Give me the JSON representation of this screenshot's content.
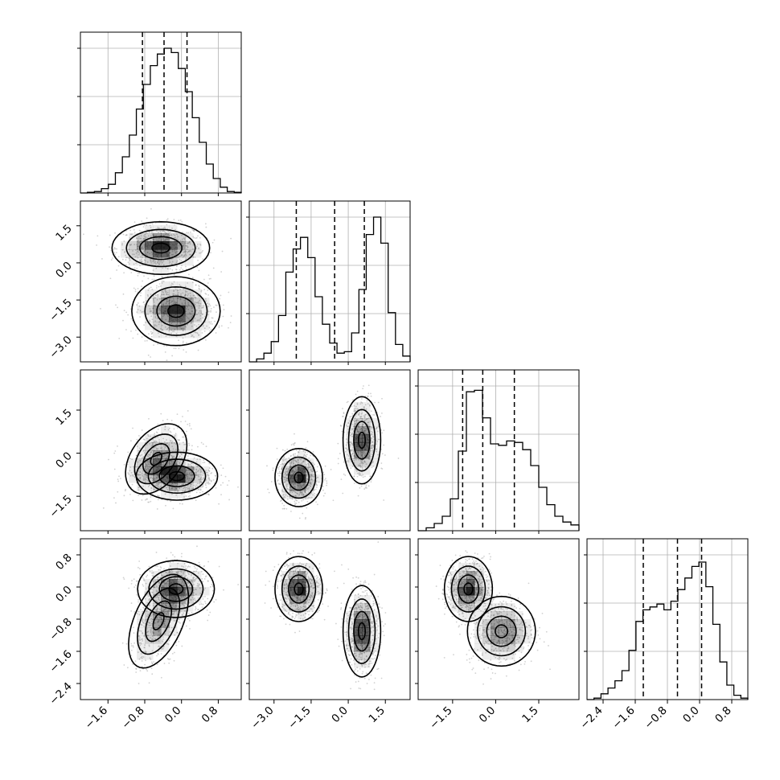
{
  "chart_data": {
    "type": "corner",
    "title": "",
    "dimensions": 4,
    "ranges": [
      [
        -2.2,
        1.3
      ],
      [
        -4.0,
        2.5
      ],
      [
        -2.7,
        2.9
      ],
      [
        -2.8,
        1.2
      ]
    ],
    "ticks": [
      [
        -1.6,
        -0.8,
        0.0,
        0.8
      ],
      [
        -3.0,
        -1.5,
        0.0,
        1.5
      ],
      [
        -1.5,
        0.0,
        1.5
      ],
      [
        -2.4,
        -1.6,
        -0.8,
        0.0,
        0.8
      ]
    ],
    "tick_labels": [
      [
        "−1.6",
        "−0.8",
        "0.0",
        "0.8"
      ],
      [
        "−3.0",
        "−1.5",
        "0.0",
        "1.5"
      ],
      [
        "−1.5",
        "0.0",
        "1.5"
      ],
      [
        "−2.4",
        "−1.6",
        "−0.8",
        "0.0",
        "0.8"
      ]
    ],
    "quantiles": [
      [
        -0.85,
        -0.38,
        0.12
      ],
      [
        -2.1,
        -0.55,
        0.65
      ],
      [
        -1.15,
        -0.45,
        0.65
      ],
      [
        -1.4,
        -0.55,
        0.05
      ]
    ],
    "histograms": [
      [
        0.0,
        0.005,
        0.01,
        0.03,
        0.06,
        0.14,
        0.25,
        0.4,
        0.58,
        0.75,
        0.88,
        0.96,
        1.0,
        0.97,
        0.86,
        0.7,
        0.52,
        0.35,
        0.2,
        0.1,
        0.04,
        0.01,
        0.005
      ],
      [
        0.0,
        0.02,
        0.06,
        0.14,
        0.32,
        0.62,
        0.78,
        0.86,
        0.72,
        0.45,
        0.26,
        0.13,
        0.06,
        0.07,
        0.2,
        0.5,
        0.88,
        1.0,
        0.82,
        0.34,
        0.12,
        0.04
      ],
      [
        0.0,
        0.02,
        0.05,
        0.1,
        0.22,
        0.55,
        0.96,
        0.97,
        0.78,
        0.6,
        0.59,
        0.62,
        0.61,
        0.56,
        0.45,
        0.3,
        0.18,
        0.1,
        0.06,
        0.04
      ],
      [
        0.0,
        0.01,
        0.04,
        0.08,
        0.13,
        0.2,
        0.34,
        0.54,
        0.62,
        0.64,
        0.66,
        0.62,
        0.68,
        0.76,
        0.84,
        0.92,
        0.95,
        0.78,
        0.52,
        0.26,
        0.1,
        0.03,
        0.01
      ]
    ],
    "pairs": [
      {
        "x_dim": 0,
        "y_dim": 1,
        "clusters": [
          {
            "cx": -0.45,
            "cy": 0.6,
            "sx": 0.42,
            "sy": 0.42,
            "rho": 0.0,
            "w": 1.0
          },
          {
            "cx": -0.12,
            "cy": -1.95,
            "sx": 0.38,
            "sy": 0.55,
            "rho": 0.0,
            "w": 1.0
          }
        ]
      },
      {
        "x_dim": 0,
        "y_dim": 2,
        "clusters": [
          {
            "cx": -0.55,
            "cy": -0.2,
            "sx": 0.3,
            "sy": 0.55,
            "rho": 0.4,
            "w": 0.7
          },
          {
            "cx": -0.1,
            "cy": -0.8,
            "sx": 0.35,
            "sy": 0.33,
            "rho": 0.0,
            "w": 1.0
          }
        ]
      },
      {
        "x_dim": 1,
        "y_dim": 2,
        "clusters": [
          {
            "cx": -2.0,
            "cy": -0.85,
            "sx": 0.38,
            "sy": 0.4,
            "rho": 0.0,
            "w": 1.0
          },
          {
            "cx": 0.55,
            "cy": 0.45,
            "sx": 0.3,
            "sy": 0.6,
            "rho": 0.0,
            "w": 1.0
          }
        ]
      },
      {
        "x_dim": 0,
        "y_dim": 3,
        "clusters": [
          {
            "cx": -0.5,
            "cy": -0.85,
            "sx": 0.28,
            "sy": 0.5,
            "rho": 0.5,
            "w": 0.8
          },
          {
            "cx": -0.12,
            "cy": -0.05,
            "sx": 0.33,
            "sy": 0.28,
            "rho": 0.0,
            "w": 1.0
          }
        ]
      },
      {
        "x_dim": 1,
        "y_dim": 3,
        "clusters": [
          {
            "cx": -2.0,
            "cy": -0.05,
            "sx": 0.38,
            "sy": 0.32,
            "rho": 0.0,
            "w": 1.0
          },
          {
            "cx": 0.55,
            "cy": -1.1,
            "sx": 0.3,
            "sy": 0.45,
            "rho": 0.0,
            "w": 1.0
          }
        ]
      },
      {
        "x_dim": 2,
        "y_dim": 3,
        "clusters": [
          {
            "cx": -0.95,
            "cy": -0.05,
            "sx": 0.33,
            "sy": 0.32,
            "rho": 0.0,
            "w": 1.0
          },
          {
            "cx": 0.2,
            "cy": -1.1,
            "sx": 0.52,
            "sy": 0.38,
            "rho": 0.0,
            "w": 0.75
          }
        ]
      }
    ],
    "grid": true,
    "colors": {
      "line": "#000000",
      "grid": "#b0b0b0",
      "points": "#9a9a9a",
      "density": "#000000"
    }
  }
}
